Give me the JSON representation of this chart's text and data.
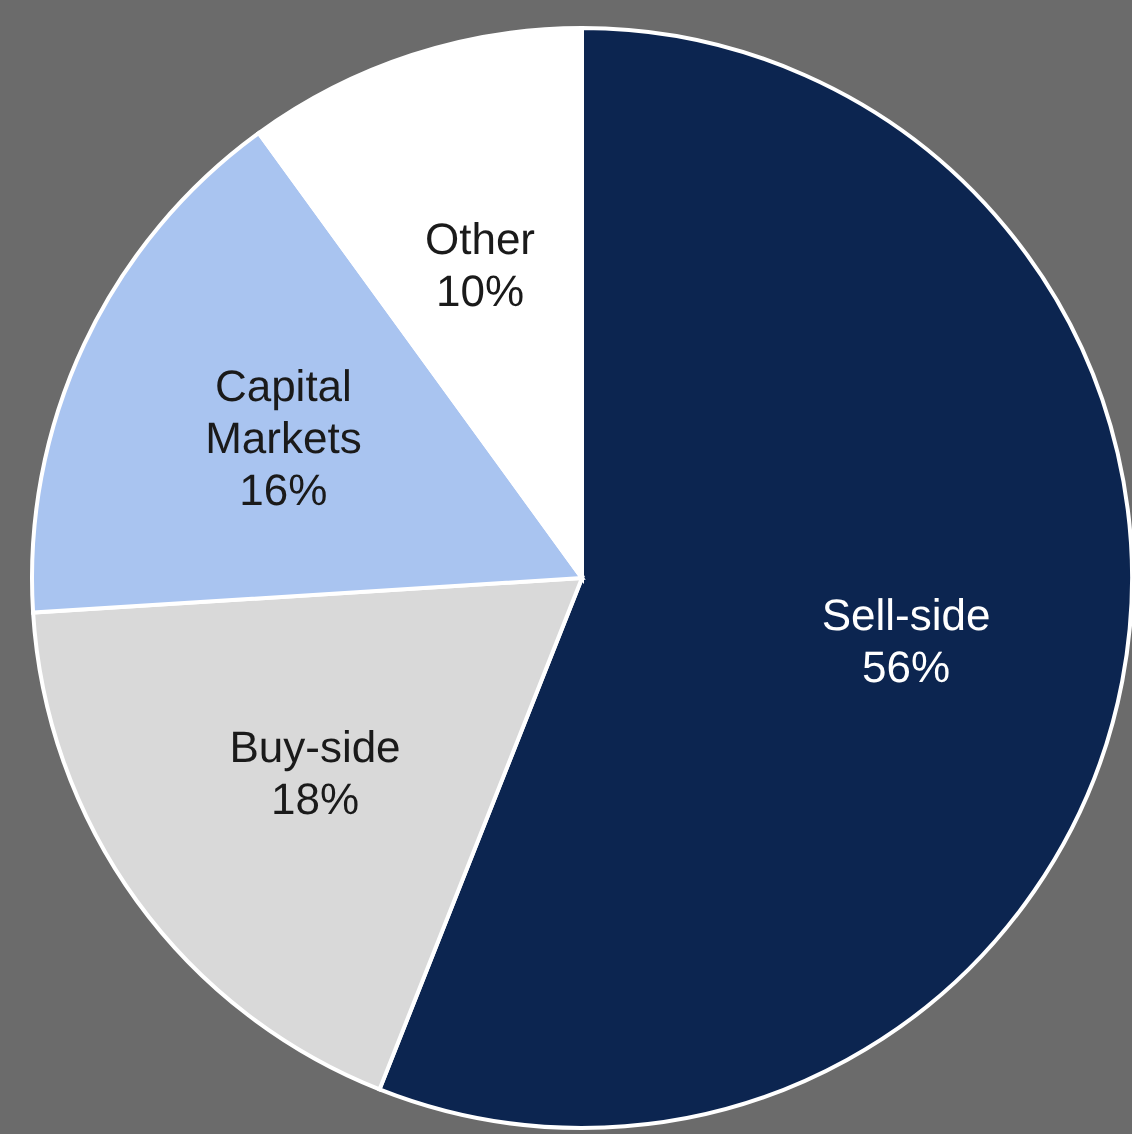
{
  "chart_data": {
    "type": "pie",
    "categories": [
      "Sell-side",
      "Buy-side",
      "Capital Markets",
      "Other"
    ],
    "values": [
      56,
      18,
      16,
      10
    ],
    "colors": [
      "#0c2550",
      "#d9d9d9",
      "#a9c4f0",
      "#ffffff"
    ],
    "value_labels": [
      "56%",
      "18%",
      "16%",
      "10%"
    ]
  }
}
